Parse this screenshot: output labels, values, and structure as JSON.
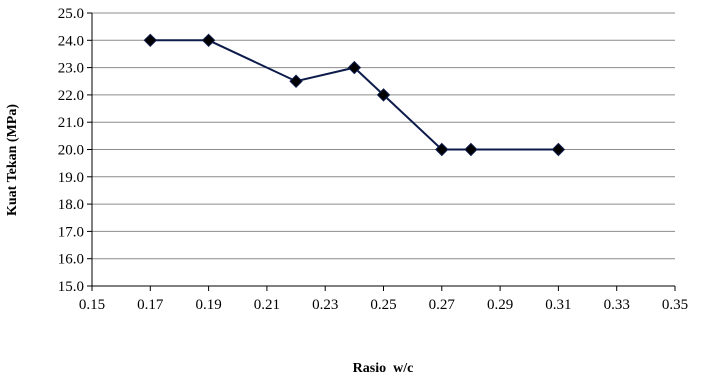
{
  "chart_data": {
    "type": "line",
    "title": "",
    "xlabel": "Rasio  w/c",
    "ylabel": "Kuat Tekan (MPa)",
    "xlim": [
      0.15,
      0.35
    ],
    "ylim": [
      15.0,
      25.0
    ],
    "xticks": [
      "0.15",
      "0.17",
      "0.19",
      "0.21",
      "0.23",
      "0.25",
      "0.27",
      "0.29",
      "0.31",
      "0.33",
      "0.35"
    ],
    "yticks": [
      "15.0",
      "16.0",
      "17.0",
      "18.0",
      "19.0",
      "20.0",
      "21.0",
      "22.0",
      "23.0",
      "24.0",
      "25.0"
    ],
    "grid": true,
    "legend": "none",
    "series": [
      {
        "marker": "diamond",
        "color": "#0d1b4a",
        "x": [
          0.17,
          0.19,
          0.22,
          0.24,
          0.25,
          0.27,
          0.28,
          0.31
        ],
        "y": [
          24.0,
          24.0,
          22.5,
          23.0,
          22.0,
          20.0,
          20.0,
          20.0
        ]
      }
    ]
  }
}
